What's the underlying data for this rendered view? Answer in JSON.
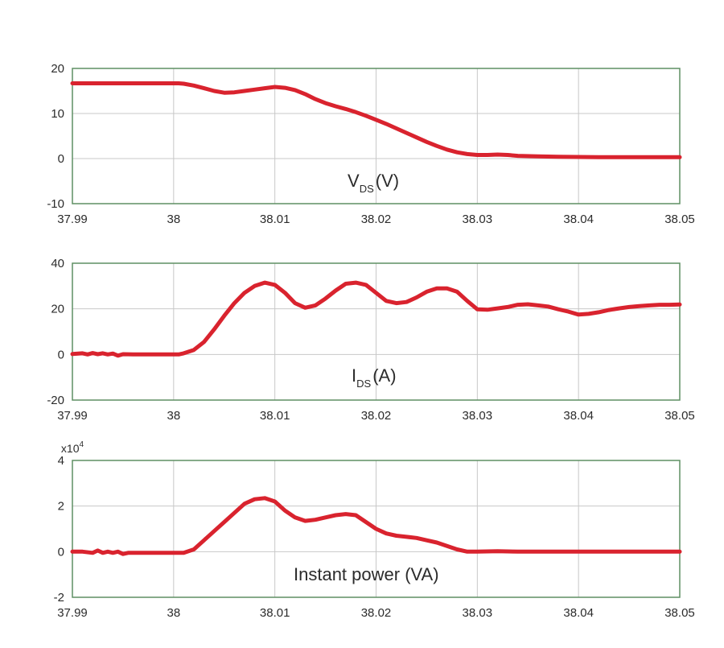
{
  "colors": {
    "line": "#d9232e",
    "frame": "#5f8f63",
    "grid": "#c8c8c8",
    "text": "#2b2b2b"
  },
  "chart_data": [
    {
      "type": "line",
      "annotation": {
        "main": "V",
        "sub": "DS",
        "rest": "(V)"
      },
      "xlim": [
        37.99,
        38.05
      ],
      "ylim": [
        -10,
        20
      ],
      "xticks": [
        "37.99",
        "38",
        "38.01",
        "38.02",
        "38.03",
        "38.04",
        "38.05"
      ],
      "xtick_values": [
        37.99,
        38.0,
        38.01,
        38.02,
        38.03,
        38.04,
        38.05
      ],
      "yticks": [
        "20",
        "10",
        "0",
        "-10"
      ],
      "ytick_values": [
        20,
        10,
        0,
        -10
      ],
      "grid": true,
      "series": [
        {
          "name": "VDS",
          "x": [
            37.99,
            37.995,
            38.0,
            38.0005,
            38.001,
            38.002,
            38.003,
            38.004,
            38.005,
            38.006,
            38.007,
            38.008,
            38.009,
            38.01,
            38.011,
            38.012,
            38.013,
            38.014,
            38.015,
            38.016,
            38.017,
            38.018,
            38.019,
            38.02,
            38.021,
            38.022,
            38.023,
            38.024,
            38.025,
            38.026,
            38.027,
            38.028,
            38.029,
            38.03,
            38.031,
            38.032,
            38.033,
            38.034,
            38.036,
            38.038,
            38.04,
            38.042,
            38.045,
            38.048,
            38.05
          ],
          "y": [
            16.7,
            16.7,
            16.7,
            16.7,
            16.6,
            16.2,
            15.6,
            15.0,
            14.6,
            14.7,
            15.0,
            15.3,
            15.6,
            15.9,
            15.7,
            15.2,
            14.3,
            13.2,
            12.3,
            11.6,
            11.0,
            10.3,
            9.5,
            8.6,
            7.7,
            6.7,
            5.7,
            4.7,
            3.7,
            2.8,
            2.0,
            1.4,
            1.0,
            0.8,
            0.8,
            0.9,
            0.8,
            0.6,
            0.5,
            0.4,
            0.35,
            0.3,
            0.3,
            0.3,
            0.3
          ]
        }
      ]
    },
    {
      "type": "line",
      "annotation": {
        "main": "I",
        "sub": "DS",
        "rest": "(A)"
      },
      "xlim": [
        37.99,
        38.05
      ],
      "ylim": [
        -20,
        40
      ],
      "xticks": [
        "37.99",
        "38",
        "38.01",
        "38.02",
        "38.03",
        "38.04",
        "38.05"
      ],
      "xtick_values": [
        37.99,
        38.0,
        38.01,
        38.02,
        38.03,
        38.04,
        38.05
      ],
      "yticks": [
        "40",
        "20",
        "0",
        "-20"
      ],
      "ytick_values": [
        40,
        20,
        0,
        -20
      ],
      "grid": true,
      "series": [
        {
          "name": "IDS",
          "x": [
            37.99,
            37.991,
            37.9915,
            37.992,
            37.9925,
            37.993,
            37.9935,
            37.994,
            37.9945,
            37.995,
            37.996,
            37.998,
            38.0,
            38.0005,
            38.001,
            38.002,
            38.003,
            38.004,
            38.005,
            38.006,
            38.007,
            38.008,
            38.009,
            38.01,
            38.011,
            38.012,
            38.013,
            38.014,
            38.015,
            38.016,
            38.017,
            38.018,
            38.019,
            38.02,
            38.021,
            38.022,
            38.023,
            38.024,
            38.025,
            38.026,
            38.027,
            38.028,
            38.029,
            38.03,
            38.031,
            38.032,
            38.033,
            38.034,
            38.035,
            38.036,
            38.037,
            38.038,
            38.039,
            38.04,
            38.041,
            38.042,
            38.043,
            38.044,
            38.045,
            38.046,
            38.047,
            38.048,
            38.049,
            38.05
          ],
          "y": [
            0.2,
            0.5,
            0.0,
            0.6,
            0.1,
            0.5,
            0.0,
            0.4,
            -0.5,
            0.1,
            0.0,
            0.0,
            0.0,
            0.0,
            0.5,
            2.0,
            5.5,
            11.0,
            17.0,
            22.5,
            27.0,
            30.0,
            31.5,
            30.5,
            27.0,
            22.5,
            20.5,
            21.5,
            24.5,
            28.0,
            31.0,
            31.5,
            30.5,
            27.0,
            23.5,
            22.5,
            23.0,
            25.0,
            27.5,
            29.0,
            29.0,
            27.5,
            23.5,
            19.8,
            19.6,
            20.2,
            20.8,
            21.8,
            22.0,
            21.5,
            21.0,
            19.8,
            18.8,
            17.5,
            17.8,
            18.5,
            19.5,
            20.2,
            20.8,
            21.2,
            21.5,
            21.8,
            21.8,
            21.9
          ]
        }
      ]
    },
    {
      "type": "line",
      "annotation": {
        "main": "Instant power (VA)",
        "sub": "",
        "rest": ""
      },
      "scale_label": {
        "base": "x10",
        "exp": "4"
      },
      "xlim": [
        37.99,
        38.05
      ],
      "ylim": [
        -2,
        4
      ],
      "xticks": [
        "37.99",
        "38",
        "38.01",
        "38.02",
        "38.03",
        "38.04",
        "38.05"
      ],
      "xtick_values": [
        37.99,
        38.0,
        38.01,
        38.02,
        38.03,
        38.04,
        38.05
      ],
      "yticks": [
        "4",
        "2",
        "0",
        "-2"
      ],
      "ytick_values": [
        4,
        2,
        0,
        -2
      ],
      "grid": true,
      "series": [
        {
          "name": "Instant power",
          "x": [
            37.99,
            37.991,
            37.992,
            37.9925,
            37.993,
            37.9935,
            37.994,
            37.9945,
            37.995,
            37.9955,
            37.996,
            37.998,
            38.0,
            38.001,
            38.002,
            38.003,
            38.004,
            38.005,
            38.006,
            38.007,
            38.008,
            38.009,
            38.01,
            38.011,
            38.012,
            38.013,
            38.014,
            38.015,
            38.016,
            38.017,
            38.018,
            38.019,
            38.02,
            38.021,
            38.022,
            38.023,
            38.024,
            38.025,
            38.026,
            38.027,
            38.028,
            38.029,
            38.03,
            38.032,
            38.034,
            38.036,
            38.04,
            38.045,
            38.05
          ],
          "y": [
            0.0,
            0.0,
            -0.05,
            0.05,
            -0.05,
            0.0,
            -0.05,
            0.0,
            -0.1,
            -0.05,
            -0.05,
            -0.05,
            -0.05,
            -0.05,
            0.1,
            0.5,
            0.9,
            1.3,
            1.7,
            2.1,
            2.3,
            2.35,
            2.2,
            1.8,
            1.5,
            1.35,
            1.4,
            1.5,
            1.6,
            1.65,
            1.6,
            1.3,
            1.0,
            0.8,
            0.7,
            0.65,
            0.6,
            0.5,
            0.4,
            0.25,
            0.1,
            0.0,
            0.0,
            0.02,
            0.0,
            0.0,
            0.0,
            0.0,
            0.0
          ]
        }
      ]
    }
  ]
}
